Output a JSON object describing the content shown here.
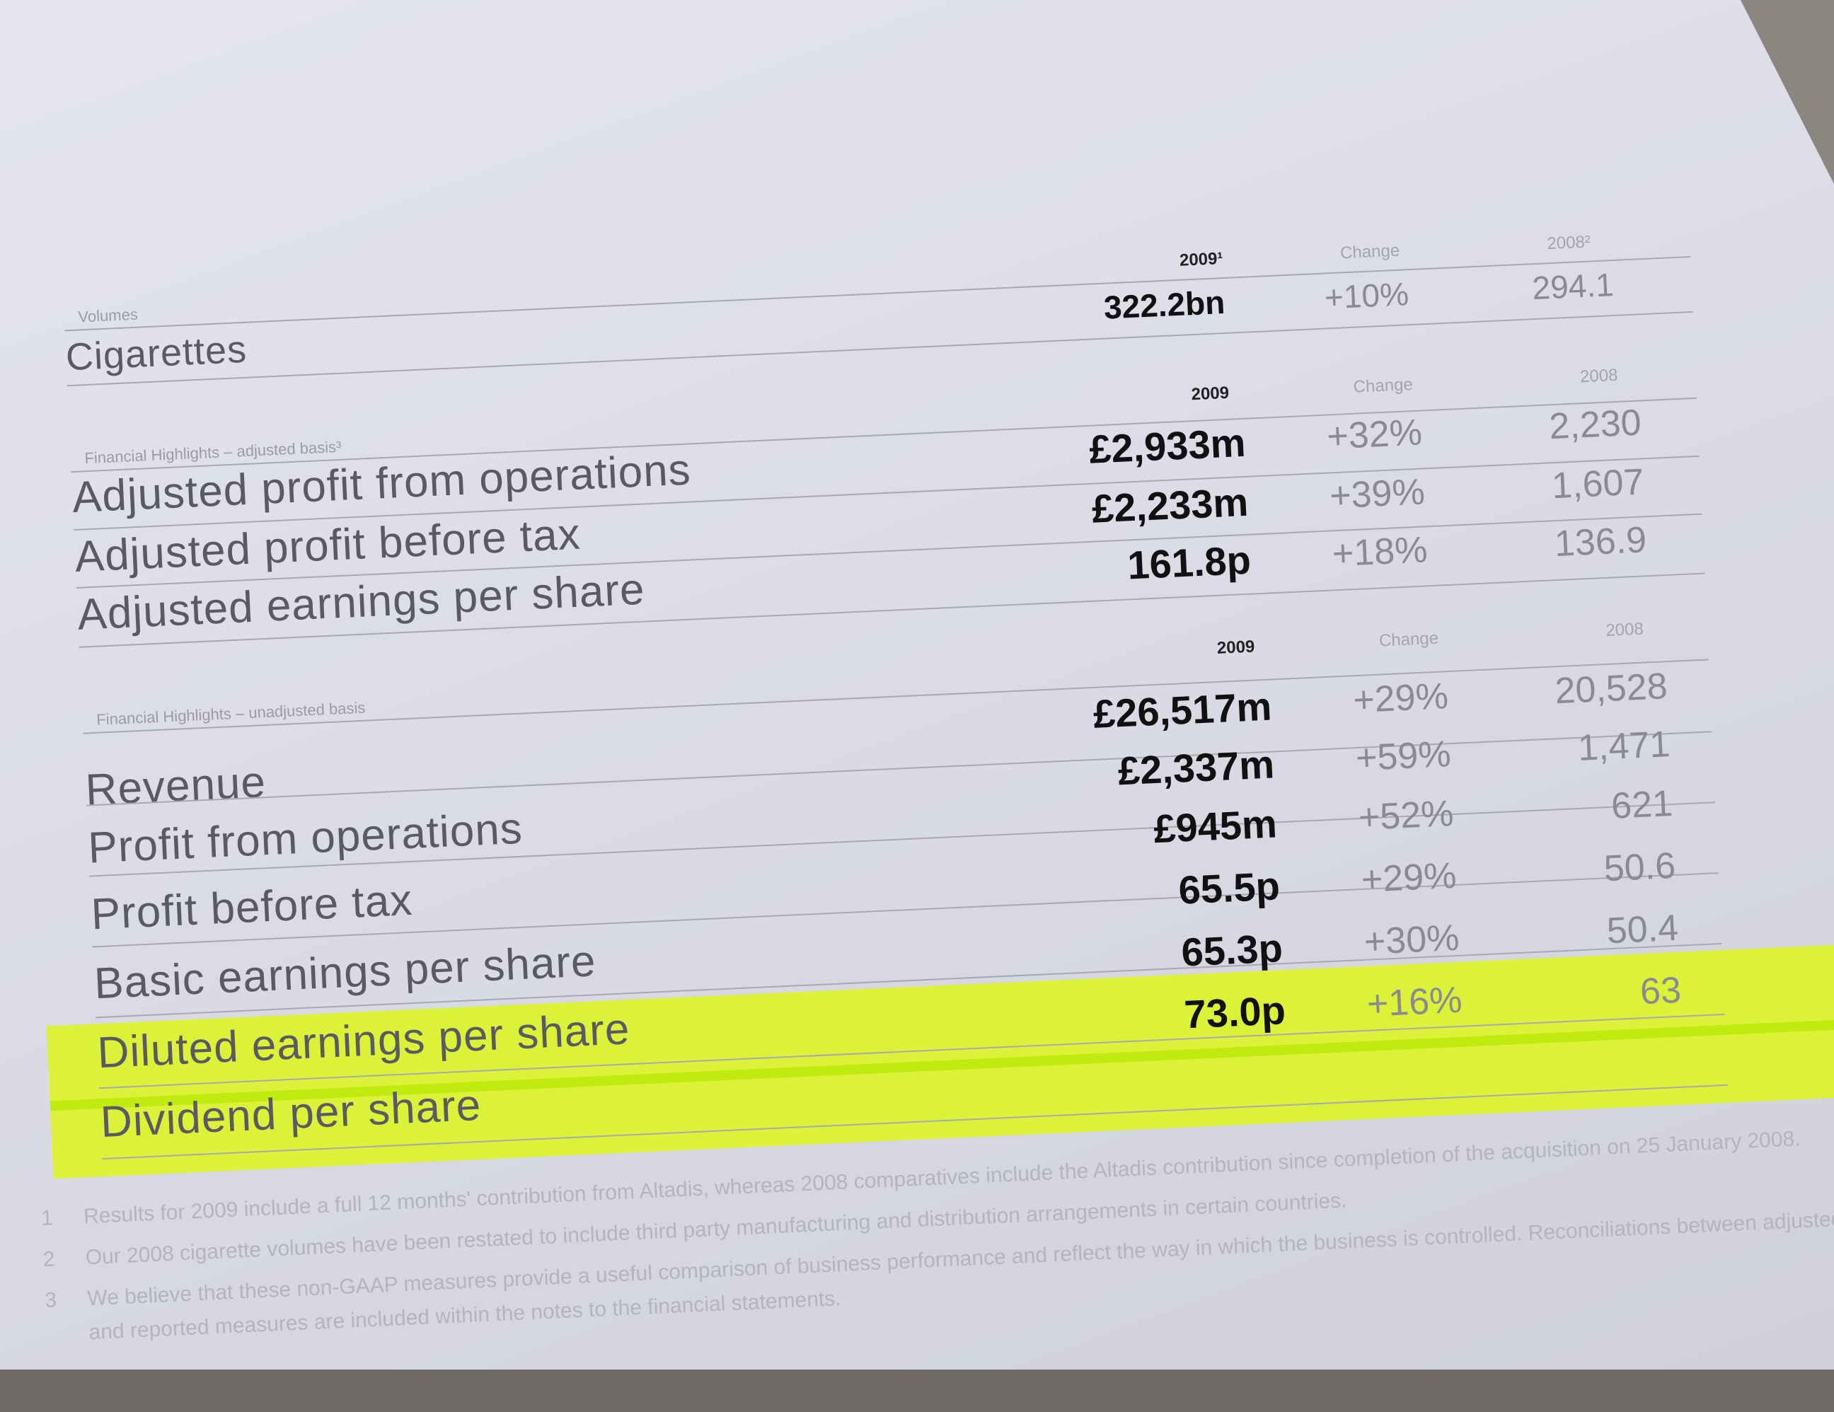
{
  "volumes": {
    "section_label": "Volumes",
    "col_year": "2009¹",
    "col_change": "Change",
    "col_prev": "2008²",
    "rows": [
      {
        "label": "Cigarettes",
        "value": "322.2bn",
        "change": "+10%",
        "prev": "294.1"
      }
    ]
  },
  "adjusted": {
    "section_label": "Financial Highlights – adjusted basis³",
    "col_year": "2009",
    "col_change": "Change",
    "col_prev": "2008",
    "rows": [
      {
        "label": "Adjusted profit from operations",
        "value": "£2,933m",
        "change": "+32%",
        "prev": "2,230"
      },
      {
        "label": "Adjusted profit before tax",
        "value": "£2,233m",
        "change": "+39%",
        "prev": "1,607"
      },
      {
        "label": "Adjusted earnings per share",
        "value": "161.8p",
        "change": "+18%",
        "prev": "136.9"
      }
    ]
  },
  "unadjusted": {
    "section_label": "Financial Highlights – unadjusted basis",
    "col_year": "2009",
    "col_change": "Change",
    "col_prev": "2008",
    "rows": [
      {
        "label": "Revenue",
        "value": "£26,517m",
        "change": "+29%",
        "prev": "20,528"
      },
      {
        "label": "Profit from operations",
        "value": "£2,337m",
        "change": "+59%",
        "prev": "1,471"
      },
      {
        "label": "Profit before tax",
        "value": "£945m",
        "change": "+52%",
        "prev": "621"
      },
      {
        "label": "Basic earnings per share",
        "value": "65.5p",
        "change": "+29%",
        "prev": "50.6"
      },
      {
        "label": "Diluted earnings per share",
        "value": "65.3p",
        "change": "+30%",
        "prev": "50.4"
      },
      {
        "label": "Dividend per share",
        "value": "73.0p",
        "change": "+16%",
        "prev": "63"
      }
    ]
  },
  "footnotes": [
    {
      "num": "1",
      "text": "Results for 2009 include a full 12 months' contribution from Altadis, whereas 2008 comparatives include the Altadis contribution since completion of the acquisition on 25 January 2008."
    },
    {
      "num": "2",
      "text": "Our 2008 cigarette volumes have been restated to include third party manufacturing and distribution arrangements in certain countries."
    },
    {
      "num": "3",
      "text": "We believe that these non-GAAP measures provide a useful comparison of business performance and reflect the way in which the business is controlled. Reconciliations between adjusted and reported measures are included within the notes to the financial statements."
    }
  ],
  "highlight_color": "#dcf52a"
}
